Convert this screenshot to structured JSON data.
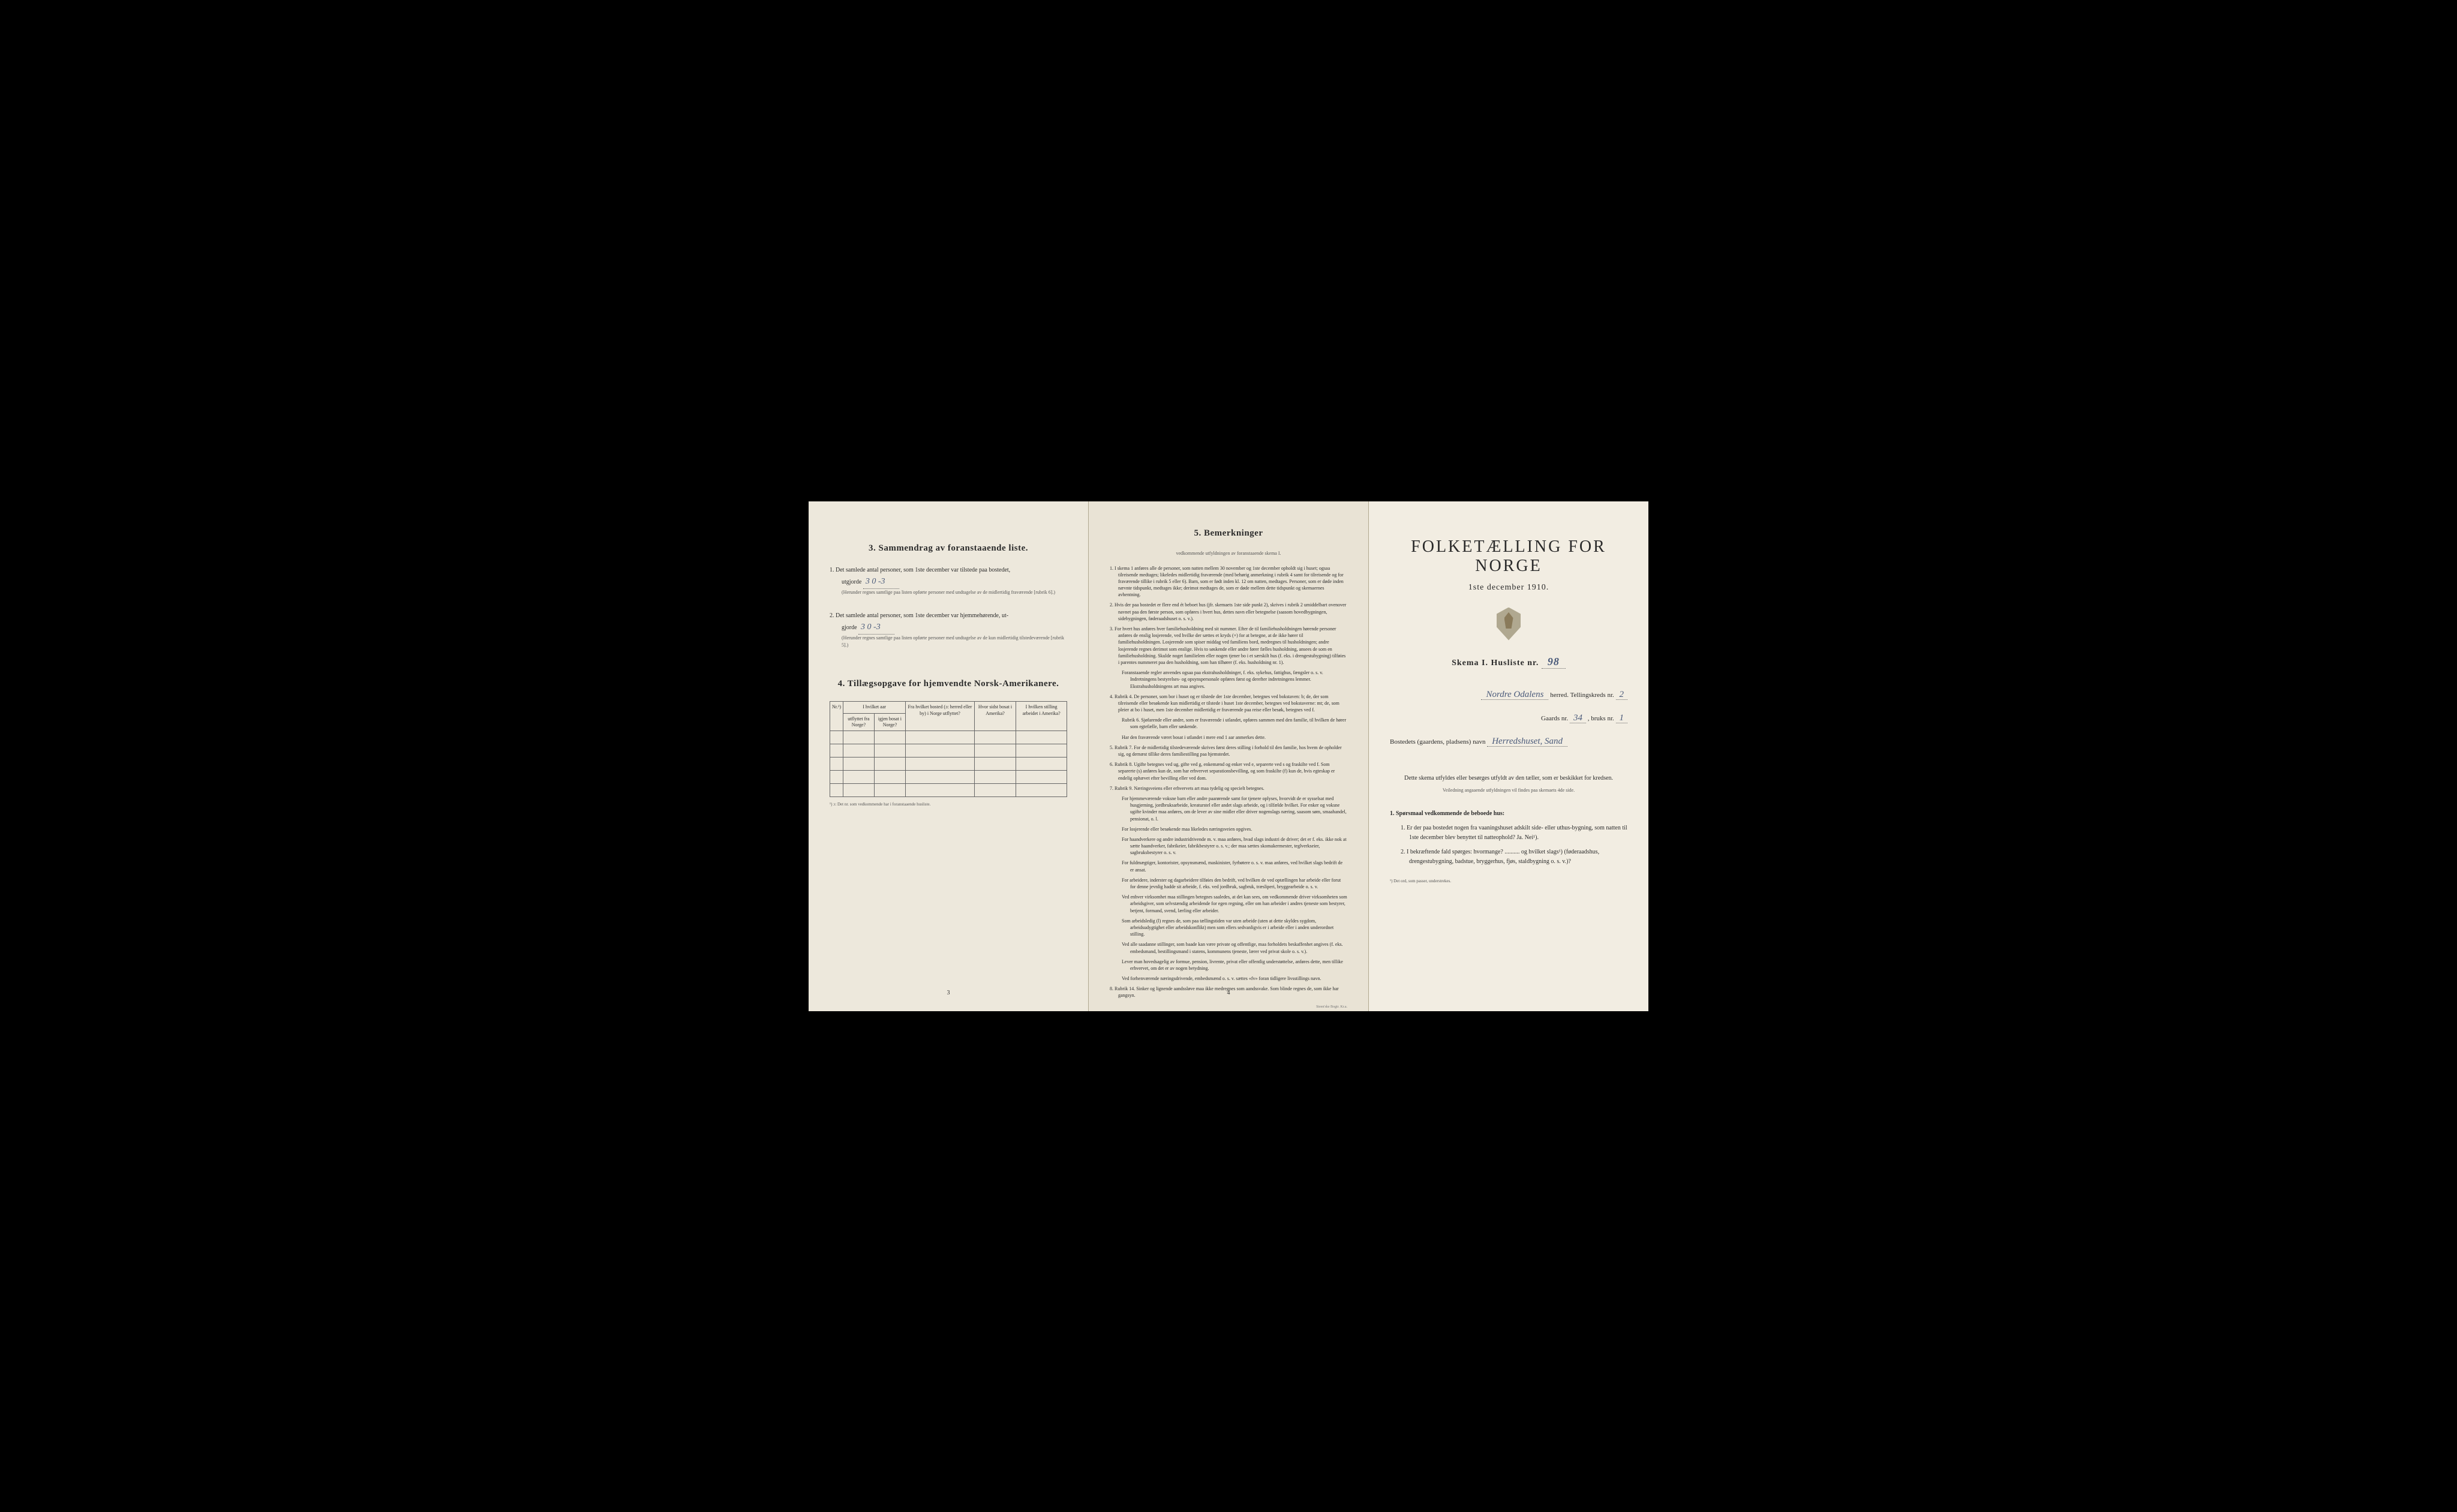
{
  "colors": {
    "page_bg_left": "#ede8dc",
    "page_bg_center": "#e9e3d5",
    "page_bg_right": "#f2ede2",
    "outer_bg": "#000000",
    "text_primary": "#2a2a2a",
    "text_secondary": "#555555",
    "handwriting": "#4a5a7a",
    "border": "#666666"
  },
  "left": {
    "section3_title": "3.  Sammendrag av foranstaaende liste.",
    "item1_pre": "1.  Det samlede antal personer, som 1ste december var tilstede paa bostedet,",
    "item1_word": "utgjorde",
    "item1_value": "3   0  -3",
    "item1_note": "(Herunder regnes samtlige paa listen opførte personer med undtagelse av de midlertidig fraværende [rubrik 6].)",
    "item2_pre": "2.  Det samlede antal personer, som 1ste december var hjemmehørende, ut-",
    "item2_word": "gjorde",
    "item2_value": "3    0 -3",
    "item2_note": "(Herunder regnes samtlige paa listen opførte personer med undtagelse av de kun midlertidig tilstedeværende [rubrik 5].)",
    "section4_title": "4.  Tillægsopgave for hjemvendte Norsk-Amerikanere.",
    "tbl_h_nr": "Nr.¹)",
    "tbl_h_grp": "I hvilket aar",
    "tbl_h_c1a": "utflyttet fra Norge?",
    "tbl_h_c1b": "igjen bosat i Norge?",
    "tbl_h_c2": "Fra hvilket bosted (ɔ: herred eller by) i Norge utflyttet?",
    "tbl_h_c3": "Hvor sidst bosat i Amerika?",
    "tbl_h_c4": "I hvilken stilling arbeidet i Amerika?",
    "table_rows": 5,
    "tbl_note": "¹) ɔ: Det nr. som vedkommende har i foranstaaende husliste.",
    "page_num": "3"
  },
  "center": {
    "title": "5.  Bemerkninger",
    "subtitle": "vedkommende utfyldningen av foranstaaende skema I.",
    "items": [
      "1. I skema 1 anføres alle de personer, som natten mellem 30 november og 1ste december opholdt sig i huset; ogsaa tilreisende medtages; likeledes midlertidig fraværende (med behørig anmerkning i rubrik 4 samt for tilreisende og for fraværende tillike i rubrik 5 eller 6). Barn, som er født inden kl. 12 om natten, medtages. Personer, som er døde inden nævnte tidspunkt, medtages ikke; derimot medtages de, som er døde mellem dette tidspunkt og skemaernes avhentning.",
      "2. Hvis der paa bostedet er flere end ét beboet hus (jfr. skemaets 1ste side punkt 2), skrives i rubrik 2 umiddelbart ovenover navnet paa den første person, som opføres i hvert hus, dettes navn eller betegnelse (saasom hovedbygningen, sidebygningen, føderaadshuset o. s. v.).",
      "3. For hvert hus anføres hver familiehusholdning med sit nummer. Efter de til familiehusholdningen hørende personer anføres de enslig losjerende, ved hvilke der sættes et kryds (×) for at betegne, at de ikke hører til familiehusholdningen. Losjerende som spiser middag ved familiens bord, medregnes til husholdningen; andre losjerende regnes derimot som enslige. Hvis to søskende eller andre fører fælles husholdning, ansees de som en familiehusholdning. Skulde noget familielem eller nogen tjener bo i et særskilt hus (f. eks. i drengestubygning) tilføies i parentes nummeret paa den husholdning, som han tilhører (f. eks. husholdning nr. 1).",
      "4. Rubrik 4. De personer, som bor i huset og er tilstede der 1ste december, betegnes ved bokstaven: b; de, der som tilreisende eller besøkende kun midlertidig er tilstede i huset 1ste december, betegnes ved bokstaverne: mt; de, som pleier at bo i huset, men 1ste december midlertidig er fraværende paa reise eller besøk, betegnes ved f.",
      "5. Rubrik 7. For de midlertidig tilstedeværende skrives først deres stilling i forhold til den familie, hos hvem de opholder sig, og dernæst tillike deres familiestilling paa hjemstedet.",
      "6. Rubrik 8. Ugifte betegnes ved ug, gifte ved g, enkemænd og enker ved e, separerte ved s og fraskilte ved f. Som separerte (s) anføres kun de, som har erhvervet separationsbevilling, og som fraskilte (f) kun de, hvis egteskap er endelig ophævet efter bevilling eller ved dom.",
      "7. Rubrik 9. Næringsveiens eller erhvervets art maa tydelig og specielt betegnes.",
      "8. Rubrik 14. Sinker og lignende aandssløve maa ikke medregnes som aandssvake. Som blinde regnes de, som ikke har gangsyn."
    ],
    "extra_3": "Foranstaaende regler anvendes ogsaa paa ekstrahusholdninger, f. eks. sykehus, fattighus, fængsler o. s. v. Indretningens bestyrelses- og opsynspersonale opføres først og derefter indretningens lemmer. Ekstrahusholdningens art maa angives.",
    "extra_4a": "Rubrik 6. Sjøfarende eller andre, som er fraværende i utlandet, opføres sammen med den familie, til hvilken de hører som egtefælle, barn eller søskende.",
    "extra_4b": "Har den fraværende været bosat i utlandet i mere end 1 aar anmerkes dette.",
    "extra_7a": "For hjemmeværende voksne barn eller andre paarørende samt for tjenere oplyses, hvorvidt de er sysselsat med husgjerning, jordbruksarbeide, kreaturstel eller andet slags arbeide, og i tilfælde hvilket. For enker og voksne ugifte kvinder maa anføres, om de lever av sine midler eller driver nogenslags næring, saasom søm, smaahandel, pensionat, o. l.",
    "extra_7b": "For losjerende eller besøkende maa likeledes næringsveien opgives.",
    "extra_7c": "For haandverkere og andre industridrivende m. v. maa anføres, hvad slags industri de driver; det er f. eks. ikke nok at sætte haandverker, fabrikeier, fabrikbestyrer o. s. v.; der maa sættes skomakermester, teglverkseier, sagbruksbestyrer o. s. v.",
    "extra_7d": "For fuldmægtiger, kontorister, opsynsmænd, maskinister, fyrbøtere o. s. v. maa anføres, ved hvilket slags bedrift de er ansat.",
    "extra_7e": "For arbeidere, inderster og dagarbeidere tilføies den bedrift, ved hvilken de ved optællingen har arbeide eller forut for denne jevnlig hadde sit arbeide, f. eks. ved jordbruk, sagbruk, træsliperi, bryggearbeide o. s. v.",
    "extra_7f": "Ved enhver virksomhet maa stillingen betegnes saaledes, at det kan sees, om vedkommende driver virksomheten som arbeidsgiver, som selvstændig arbeidende for egen regning, eller om han arbeider i andres tjeneste som bestyrer, betjent, formand, svend, lærling eller arbeider.",
    "extra_7g": "Som arbeidsledig (l) regnes de, som paa tællingstiden var uten arbeide (uten at dette skyldes sygdom, arbeidsudygtighet eller arbeidskonflikt) men som ellers sedvanligvis er i arbeide eller i anden underordnet stilling.",
    "extra_7h": "Ved alle saadanne stillinger, som baade kan være private og offentlige, maa forholdets beskaffenhet angives (f. eks. embedsmand, bestillingsmand i statens, kommunens tjeneste, lærer ved privat skole o. s. v.).",
    "extra_7i": "Lever man hovedsagelig av formue, pension, livrente, privat eller offentlig understøttelse, anføres dette, men tillike erhvervet, om det er av nogen betydning.",
    "extra_7j": "Ved forhenværende næringsdrivende, embedsmænd o. s. v. sættes «fv» foran tidligere livsstillings navn.",
    "page_num": "4",
    "printer": "Steen'ske Bogtr. Kr.a."
  },
  "right": {
    "title": "FOLKETÆLLING FOR NORGE",
    "date": "1ste december 1910.",
    "skema_pre": "Skema I.  Husliste nr.",
    "husliste_nr": "98",
    "herred_value": "Nordre Odalens",
    "herred_label": "herred.  Tellingskreds nr.",
    "kreds_nr": "2",
    "gaards_label_pre": "Gaards nr.",
    "gaards_nr": "34",
    "bruks_label": ", bruks nr.",
    "bruks_nr": "1",
    "bosted_label": "Bostedets (gaardens, pladsens) navn",
    "bosted_value": "Herredshuset, Sand",
    "instruction": "Dette skema utfyldes eller besørges utfyldt av den tæller, som er beskikket for kredsen.",
    "instruction_sub": "Veiledning angaaende utfyldningen vil findes paa skemaets 4de side.",
    "q_header": "1. Spørsmaal vedkommende de beboede hus:",
    "q1": "1. Er der paa bostedet nogen fra vaaningshuset adskilt side- eller uthus-bygning, som natten til 1ste december blev benyttet til natteophold?  Ja.  Nei¹).",
    "q2": "2. I bekræftende fald spørges: hvormange? .......... og hvilket slags¹) (føderaadshus, drengestubygning, badstue, bryggerhus, fjøs, staldbygning o. s. v.)?",
    "footnote": "¹) Det ord, som passer, understrekes."
  }
}
